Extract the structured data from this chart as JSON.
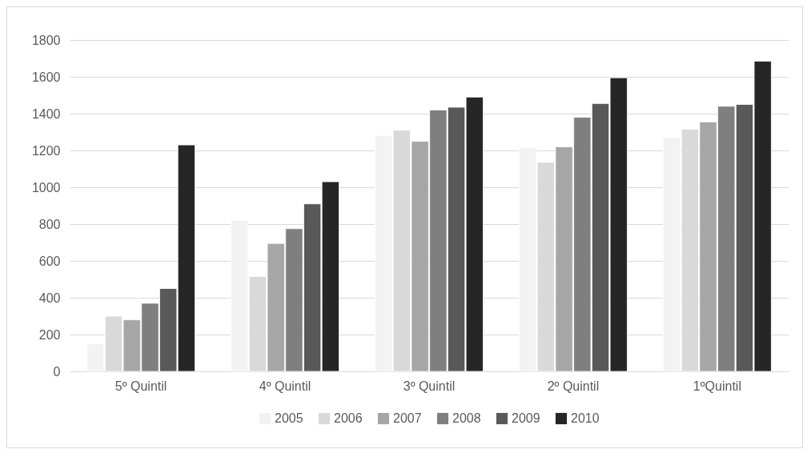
{
  "chart_data": {
    "type": "bar",
    "categories": [
      "5º Quintil",
      "4º Quintil",
      "3º Quintil",
      "2º Quintil",
      "1ºQuintil"
    ],
    "series": [
      {
        "name": "2005",
        "color": "#f2f2f2",
        "values": [
          150,
          820,
          1280,
          1215,
          1270
        ]
      },
      {
        "name": "2006",
        "color": "#d9d9d9",
        "values": [
          300,
          515,
          1310,
          1135,
          1315
        ]
      },
      {
        "name": "2007",
        "color": "#a6a6a6",
        "values": [
          280,
          695,
          1250,
          1220,
          1355
        ]
      },
      {
        "name": "2008",
        "color": "#7f7f7f",
        "values": [
          370,
          775,
          1420,
          1380,
          1440
        ]
      },
      {
        "name": "2009",
        "color": "#595959",
        "values": [
          450,
          910,
          1435,
          1455,
          1450
        ]
      },
      {
        "name": "2010",
        "color": "#262626",
        "values": [
          1230,
          1030,
          1490,
          1595,
          1685
        ]
      }
    ],
    "ylim": [
      0,
      1800
    ],
    "yticks": [
      0,
      200,
      400,
      600,
      800,
      1000,
      1200,
      1400,
      1600,
      1800
    ],
    "grid": "y",
    "legend": "bottom"
  }
}
